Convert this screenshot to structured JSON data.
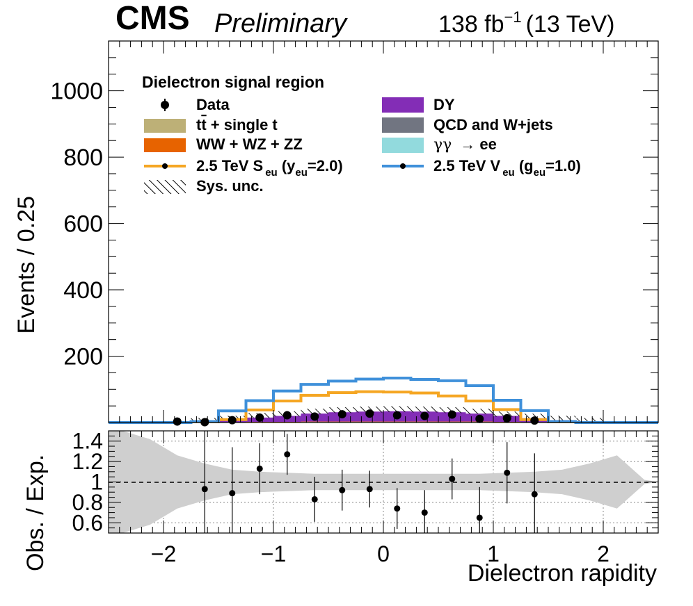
{
  "header": {
    "experiment": "CMS",
    "status": "Preliminary",
    "lumi": "138 fb",
    "lumi_exp": "−1",
    "energy": "(13 TeV)"
  },
  "colors": {
    "ttbar": "#bdb077",
    "diboson": "#e76300",
    "scalar": "#f5a623",
    "dy": "#832db6",
    "qcd": "#717581",
    "gamgam": "#92dadd",
    "vector": "#3f90da"
  },
  "chart_data": [
    {
      "type": "line",
      "title": "",
      "ylabel": "Events / 0.25",
      "xlim": [
        -2.5,
        2.5
      ],
      "ylim": [
        0,
        1150
      ],
      "yticks": [
        "200",
        "400",
        "600",
        "800",
        "1000"
      ],
      "legend_title": "Dielectron signal region",
      "legend_placement": "top",
      "legend": {
        "data": "Data",
        "ttbar_a": "t",
        "ttbar_b": "t",
        "ttbar_c": " + single t",
        "diboson": "WW + WZ + ZZ",
        "scalar_a": "2.5 TeV S",
        "scalar_sub1": "eu",
        "scalar_b": " (y",
        "scalar_sub2": "eu",
        "scalar_c": "=2.0)",
        "unc": "Sys. unc.",
        "dy": "DY",
        "qcd": "QCD and W+jets",
        "gamgam_a": "γγ",
        "gamgam_b": "→ ee",
        "vector_a": "2.5 TeV V",
        "vector_sub1": "eu",
        "vector_b": " (g",
        "vector_sub2": "eu",
        "vector_c": "=1.0)"
      },
      "bin_edges": [
        -2.5,
        -2.25,
        -2.0,
        -1.75,
        -1.5,
        -1.25,
        -1.0,
        -0.75,
        -0.5,
        -0.25,
        0.0,
        0.25,
        0.5,
        0.75,
        1.0,
        1.25,
        1.5,
        1.75,
        2.0,
        2.25,
        2.5
      ],
      "series": [
        {
          "name": "t t + single t",
          "values": [
            0,
            0,
            0,
            0,
            1,
            1,
            1,
            2,
            2,
            2,
            2,
            2,
            2,
            2,
            1,
            1,
            1,
            0,
            0,
            0
          ]
        },
        {
          "name": "WW + WZ + ZZ",
          "values": [
            0,
            0,
            0,
            0,
            0,
            1,
            1,
            1,
            1,
            1,
            1,
            1,
            1,
            1,
            1,
            0,
            0,
            0,
            0,
            0
          ]
        },
        {
          "name": "DY",
          "values": [
            0,
            0,
            0,
            1,
            6,
            13,
            18,
            24,
            28,
            30,
            31,
            30,
            28,
            24,
            18,
            12,
            6,
            1,
            0,
            0
          ]
        },
        {
          "name": "QCD and W+jets",
          "values": [
            0,
            0,
            0,
            0,
            0,
            0,
            0,
            0,
            0,
            0,
            0,
            0,
            0,
            0,
            0,
            0,
            0,
            0,
            0,
            0
          ]
        },
        {
          "name": "γγ → ee",
          "values": [
            0,
            0,
            0,
            0,
            0,
            0,
            0,
            0,
            0,
            0,
            0,
            0,
            0,
            0,
            0,
            0,
            0,
            0,
            0,
            0
          ]
        },
        {
          "name": "2.5 TeV S eu (y eu=2.0)",
          "values": [
            0,
            0,
            0,
            2,
            9,
            38,
            65,
            82,
            90,
            93,
            92,
            89,
            80,
            65,
            39,
            9,
            2,
            0,
            0,
            0
          ]
        },
        {
          "name": "2.5 TeV V eu (g eu=1.0)",
          "values": [
            0,
            0,
            0,
            3,
            35,
            66,
            95,
            115,
            125,
            131,
            134,
            130,
            126,
            111,
            67,
            36,
            3,
            0,
            0,
            0
          ]
        }
      ],
      "data_points": {
        "name": "Data",
        "x": [
          -1.875,
          -1.625,
          -1.375,
          -1.125,
          -0.875,
          -0.625,
          -0.375,
          -0.125,
          0.125,
          0.375,
          0.625,
          0.875,
          1.125,
          1.375
        ],
        "y": [
          3,
          1,
          7,
          15,
          22,
          18,
          25,
          27,
          22,
          20,
          24,
          11,
          13,
          6
        ]
      },
      "total_expected": [
        0,
        0,
        0,
        1,
        7,
        15,
        20,
        27,
        31,
        33,
        34,
        33,
        31,
        27,
        19,
        13,
        7,
        1,
        0,
        0
      ]
    },
    {
      "type": "scatter",
      "title": "",
      "ylabel": "Obs. / Exp.",
      "xlabel": "Dielectron rapidity",
      "xlim": [
        -2.5,
        2.5
      ],
      "ylim": [
        0.5,
        1.5
      ],
      "yticks": [
        "0.6",
        "0.8",
        "1",
        "1.2",
        "1.4"
      ],
      "xticks": [
        "−2",
        "−1",
        "0",
        "1",
        "2"
      ],
      "ratio_points": {
        "x": [
          -1.625,
          -1.375,
          -1.125,
          -0.875,
          -0.625,
          -0.375,
          -0.125,
          0.125,
          0.375,
          0.625,
          0.875,
          1.125,
          1.375
        ],
        "y": [
          0.93,
          0.89,
          1.13,
          1.27,
          0.83,
          0.92,
          0.93,
          0.74,
          0.7,
          1.03,
          0.65,
          1.09,
          0.88
        ],
        "err": [
          0.75,
          0.45,
          0.25,
          0.2,
          0.22,
          0.2,
          0.18,
          0.2,
          0.22,
          0.2,
          0.3,
          0.3,
          0.4
        ]
      },
      "unc_band": {
        "x": [
          -2.375,
          -2.125,
          -1.875,
          -1.625,
          -1.375,
          -1.125,
          -0.875,
          -0.625,
          -0.375,
          -0.125,
          0.125,
          0.375,
          0.625,
          0.875,
          1.125,
          1.375,
          1.625,
          1.875,
          2.125,
          2.375
        ],
        "half_width": [
          0.55,
          0.42,
          0.26,
          0.18,
          0.12,
          0.1,
          0.09,
          0.08,
          0.08,
          0.08,
          0.08,
          0.08,
          0.08,
          0.08,
          0.09,
          0.1,
          0.12,
          0.18,
          0.26,
          0.02
        ]
      }
    }
  ]
}
